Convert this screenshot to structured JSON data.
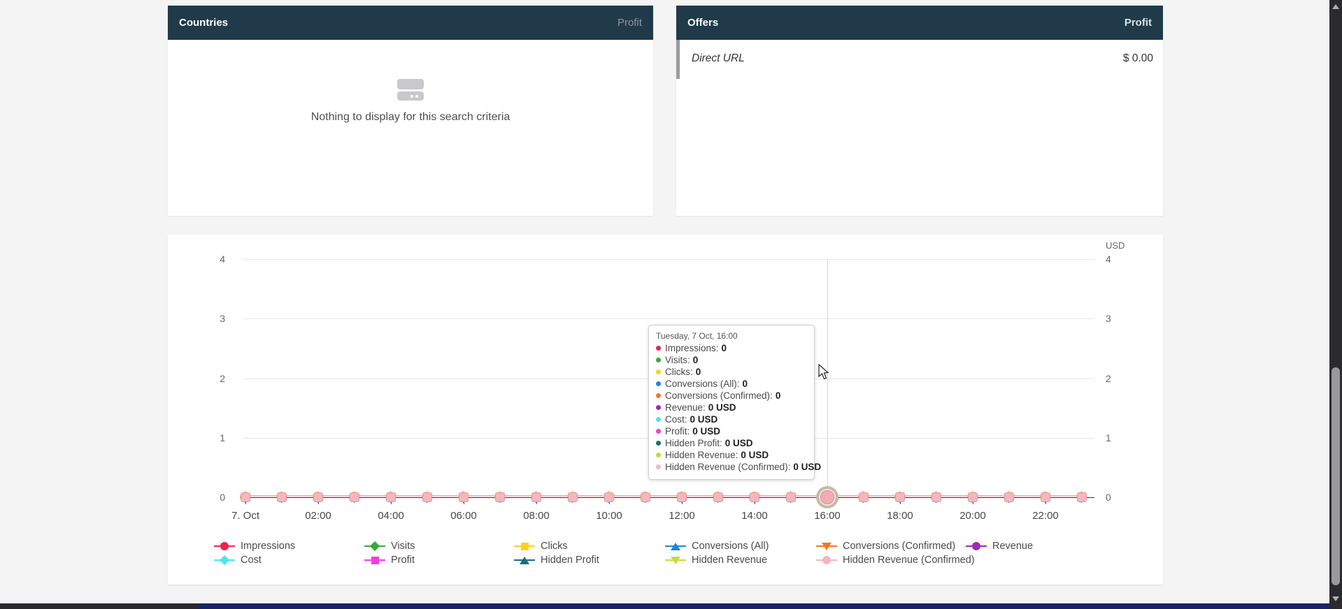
{
  "panels": {
    "countries": {
      "title": "Countries",
      "metric": "Profit",
      "empty_text": "Nothing to display for this search criteria"
    },
    "offers": {
      "title": "Offers",
      "metric": "Profit",
      "rows": [
        {
          "name": "Direct URL",
          "profit": "$ 0.00"
        }
      ]
    }
  },
  "chart_data": {
    "type": "line",
    "title": "",
    "currency_label": "USD",
    "ylim": [
      0,
      4
    ],
    "yticks": [
      0,
      1,
      2,
      3,
      4
    ],
    "grid": true,
    "legend_position": "bottom",
    "x_labels": [
      "7. Oct",
      "02:00",
      "04:00",
      "06:00",
      "08:00",
      "10:00",
      "12:00",
      "14:00",
      "16:00",
      "18:00",
      "20:00",
      "22:00"
    ],
    "points_per_day": 24,
    "hover_index": 16,
    "series": [
      {
        "name": "Impressions",
        "color": "#e8244f",
        "shape": "circle",
        "unit": "",
        "values": [
          0,
          0,
          0,
          0,
          0,
          0,
          0,
          0,
          0,
          0,
          0,
          0,
          0,
          0,
          0,
          0,
          0,
          0,
          0,
          0,
          0,
          0,
          0,
          0
        ]
      },
      {
        "name": "Visits",
        "color": "#37a93c",
        "shape": "diamond",
        "unit": "",
        "values": [
          0,
          0,
          0,
          0,
          0,
          0,
          0,
          0,
          0,
          0,
          0,
          0,
          0,
          0,
          0,
          0,
          0,
          0,
          0,
          0,
          0,
          0,
          0,
          0
        ]
      },
      {
        "name": "Clicks",
        "color": "#fdd21e",
        "shape": "square",
        "unit": "",
        "values": [
          0,
          0,
          0,
          0,
          0,
          0,
          0,
          0,
          0,
          0,
          0,
          0,
          0,
          0,
          0,
          0,
          0,
          0,
          0,
          0,
          0,
          0,
          0,
          0
        ]
      },
      {
        "name": "Conversions (All)",
        "color": "#2186d3",
        "shape": "tri-up",
        "unit": "",
        "values": [
          0,
          0,
          0,
          0,
          0,
          0,
          0,
          0,
          0,
          0,
          0,
          0,
          0,
          0,
          0,
          0,
          0,
          0,
          0,
          0,
          0,
          0,
          0,
          0
        ]
      },
      {
        "name": "Conversions (Confirmed)",
        "color": "#f4771f",
        "shape": "tri-down",
        "unit": "",
        "values": [
          0,
          0,
          0,
          0,
          0,
          0,
          0,
          0,
          0,
          0,
          0,
          0,
          0,
          0,
          0,
          0,
          0,
          0,
          0,
          0,
          0,
          0,
          0,
          0
        ]
      },
      {
        "name": "Revenue",
        "color": "#9e2bb5",
        "shape": "circle",
        "unit": "USD",
        "values": [
          0,
          0,
          0,
          0,
          0,
          0,
          0,
          0,
          0,
          0,
          0,
          0,
          0,
          0,
          0,
          0,
          0,
          0,
          0,
          0,
          0,
          0,
          0,
          0
        ]
      },
      {
        "name": "Cost",
        "color": "#4fe3ee",
        "shape": "diamond",
        "unit": "USD",
        "values": [
          0,
          0,
          0,
          0,
          0,
          0,
          0,
          0,
          0,
          0,
          0,
          0,
          0,
          0,
          0,
          0,
          0,
          0,
          0,
          0,
          0,
          0,
          0,
          0
        ]
      },
      {
        "name": "Profit",
        "color": "#f03ce8",
        "shape": "square",
        "unit": "USD",
        "values": [
          0,
          0,
          0,
          0,
          0,
          0,
          0,
          0,
          0,
          0,
          0,
          0,
          0,
          0,
          0,
          0,
          0,
          0,
          0,
          0,
          0,
          0,
          0,
          0
        ]
      },
      {
        "name": "Hidden Profit",
        "color": "#16707a",
        "shape": "tri-up",
        "unit": "USD",
        "values": [
          0,
          0,
          0,
          0,
          0,
          0,
          0,
          0,
          0,
          0,
          0,
          0,
          0,
          0,
          0,
          0,
          0,
          0,
          0,
          0,
          0,
          0,
          0,
          0
        ]
      },
      {
        "name": "Hidden Revenue",
        "color": "#c3dc38",
        "shape": "tri-down",
        "unit": "USD",
        "values": [
          0,
          0,
          0,
          0,
          0,
          0,
          0,
          0,
          0,
          0,
          0,
          0,
          0,
          0,
          0,
          0,
          0,
          0,
          0,
          0,
          0,
          0,
          0,
          0
        ]
      },
      {
        "name": "Hidden Revenue (Confirmed)",
        "color": "#f5b6be",
        "shape": "circle",
        "unit": "USD",
        "values": [
          0,
          0,
          0,
          0,
          0,
          0,
          0,
          0,
          0,
          0,
          0,
          0,
          0,
          0,
          0,
          0,
          0,
          0,
          0,
          0,
          0,
          0,
          0,
          0
        ]
      }
    ]
  },
  "tooltip": {
    "title": "Tuesday, 7 Oct, 16:00",
    "rows": [
      {
        "label": "Impressions",
        "value": "0",
        "color": "#e8244f"
      },
      {
        "label": "Visits",
        "value": "0",
        "color": "#37a93c"
      },
      {
        "label": "Clicks",
        "value": "0",
        "color": "#fdd21e"
      },
      {
        "label": "Conversions (All)",
        "value": "0",
        "color": "#2186d3"
      },
      {
        "label": "Conversions (Confirmed)",
        "value": "0",
        "color": "#f4771f"
      },
      {
        "label": "Revenue",
        "value": "0 USD",
        "color": "#9e2bb5"
      },
      {
        "label": "Cost",
        "value": "0 USD",
        "color": "#4fe3ee"
      },
      {
        "label": "Profit",
        "value": "0 USD",
        "color": "#f03ce8"
      },
      {
        "label": "Hidden Profit",
        "value": "0 USD",
        "color": "#16707a"
      },
      {
        "label": "Hidden Revenue",
        "value": "0 USD",
        "color": "#c3dc38"
      },
      {
        "label": "Hidden Revenue (Confirmed)",
        "value": "0 USD",
        "color": "#f5b6be"
      }
    ]
  },
  "colors": {
    "panel_header_bg": "#203a49",
    "page_bg": "#f4f4f5",
    "bottom_bar_blue": "#1b2464",
    "marker_pink": "#f5b6be"
  }
}
